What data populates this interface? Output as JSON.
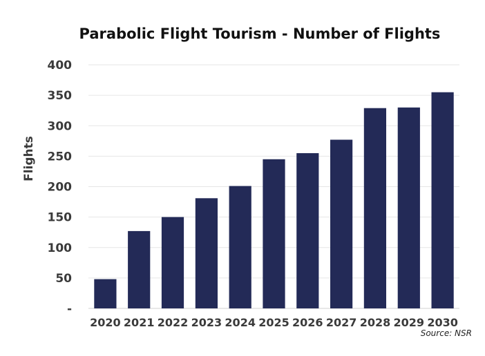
{
  "chart_data": {
    "type": "bar",
    "title": "Parabolic Flight Tourism - Number of Flights",
    "xlabel": "",
    "ylabel": "Flights",
    "categories": [
      "2020",
      "2021",
      "2022",
      "2023",
      "2024",
      "2025",
      "2026",
      "2027",
      "2028",
      "2029",
      "2030"
    ],
    "values": [
      48,
      127,
      150,
      181,
      201,
      245,
      255,
      277,
      329,
      330,
      355
    ],
    "ylim": [
      0,
      400
    ],
    "yticks": [
      0,
      50,
      100,
      150,
      200,
      250,
      300,
      350,
      400
    ],
    "ytick_labels": [
      "-",
      "50",
      "100",
      "150",
      "200",
      "250",
      "300",
      "350",
      "400"
    ],
    "grid": true,
    "legend": "none",
    "bar_color": "#232a57",
    "source": "Source: NSR"
  }
}
